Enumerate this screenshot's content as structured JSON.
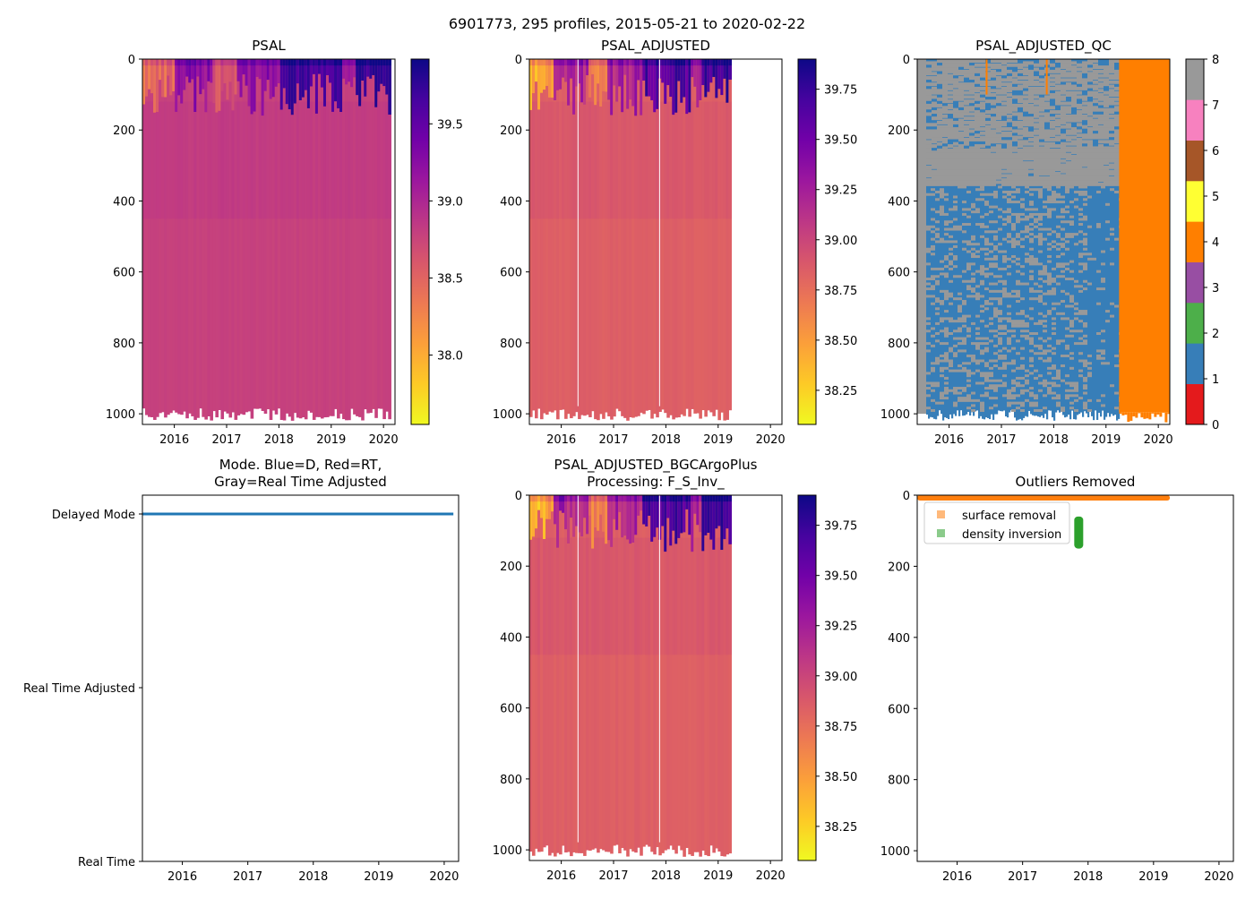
{
  "figure": {
    "suptitle": "6901773, 295 profiles, 2015-05-21 to 2020-02-22"
  },
  "chart_data": [
    {
      "id": "psal",
      "type": "heatmap",
      "title": "PSAL",
      "xticks": [
        "2016",
        "2017",
        "2018",
        "2019",
        "2020"
      ],
      "yticks": [
        "0",
        "200",
        "400",
        "600",
        "800",
        "1000"
      ],
      "ylim": [
        0,
        1030
      ],
      "data_x_end": 2020.14,
      "colormap": "plasma_r",
      "colorbar": {
        "min": 37.55,
        "max": 39.92,
        "ticks": [
          "38.0",
          "38.5",
          "39.0",
          "39.5"
        ],
        "tick_values": [
          38.0,
          38.5,
          39.0,
          39.5
        ]
      }
    },
    {
      "id": "psal-adjusted",
      "type": "heatmap",
      "title": "PSAL_ADJUSTED",
      "xticks": [
        "2016",
        "2017",
        "2018",
        "2019",
        "2020"
      ],
      "yticks": [
        "0",
        "200",
        "400",
        "600",
        "800",
        "1000"
      ],
      "ylim": [
        0,
        1030
      ],
      "data_x_end": 2019.25,
      "colormap": "plasma_r",
      "colorbar": {
        "min": 38.08,
        "max": 39.9,
        "ticks": [
          "38.25",
          "38.50",
          "38.75",
          "39.00",
          "39.25",
          "39.50",
          "39.75"
        ],
        "tick_values": [
          38.25,
          38.5,
          38.75,
          39.0,
          39.25,
          39.5,
          39.75
        ]
      }
    },
    {
      "id": "psal-adjusted-qc",
      "type": "heatmap",
      "title": "PSAL_ADJUSTED_QC",
      "xticks": [
        "2016",
        "2017",
        "2018",
        "2019",
        "2020"
      ],
      "yticks": [
        "0",
        "200",
        "400",
        "600",
        "800",
        "1000"
      ],
      "ylim": [
        0,
        1030
      ],
      "qc_flag_4_from": 2019.25,
      "colorbar": {
        "min": 0,
        "max": 8,
        "ticks": [
          "0",
          "1",
          "2",
          "3",
          "4",
          "5",
          "6",
          "7",
          "8"
        ],
        "tick_values": [
          0,
          1,
          2,
          3,
          4,
          5,
          6,
          7,
          8
        ],
        "colors": [
          "#e41a1c",
          "#377eb8",
          "#4daf4a",
          "#984ea3",
          "#ff7f00",
          "#ffff33",
          "#a65628",
          "#f781bf",
          "#999999"
        ]
      }
    },
    {
      "id": "mode",
      "type": "line",
      "title": "Mode. Blue=D, Red=RT,",
      "title_line2": "Gray=Real Time Adjusted",
      "xticks": [
        "2016",
        "2017",
        "2018",
        "2019",
        "2020"
      ],
      "yticks": [
        "Delayed Mode",
        "Real Time Adjusted",
        "Real Time"
      ],
      "series": [
        {
          "name": "Delayed Mode",
          "color": "#1f77b4",
          "x": [
            2015.39,
            2020.14
          ],
          "level": "Delayed Mode"
        }
      ]
    },
    {
      "id": "bgc-plus",
      "type": "heatmap",
      "title": "PSAL_ADJUSTED_BGCArgoPlus",
      "title_line2": "Processing: F_S_Inv_",
      "xticks": [
        "2016",
        "2017",
        "2018",
        "2019",
        "2020"
      ],
      "yticks": [
        "0",
        "200",
        "400",
        "600",
        "800",
        "1000"
      ],
      "ylim": [
        0,
        1030
      ],
      "data_x_end": 2019.25,
      "colormap": "plasma_r",
      "colorbar": {
        "min": 38.08,
        "max": 39.9,
        "ticks": [
          "38.25",
          "38.50",
          "38.75",
          "39.00",
          "39.25",
          "39.50",
          "39.75"
        ],
        "tick_values": [
          38.25,
          38.5,
          38.75,
          39.0,
          39.25,
          39.5,
          39.75
        ]
      }
    },
    {
      "id": "outliers",
      "type": "scatter",
      "title": "Outliers Removed",
      "xticks": [
        "2016",
        "2017",
        "2018",
        "2019",
        "2020"
      ],
      "yticks": [
        "0",
        "200",
        "400",
        "600",
        "800",
        "1000"
      ],
      "ylim": [
        0,
        1030
      ],
      "legend_position": "upper-left",
      "series": [
        {
          "name": "surface removal",
          "color": "#ff7f0e",
          "x": [
            2015.39,
            2019.25
          ],
          "depth": [
            0,
            10
          ]
        },
        {
          "name": "density inversion",
          "color": "#2ca02c",
          "x": [
            2017.83,
            2017.88
          ],
          "depth": [
            60,
            150
          ]
        }
      ]
    }
  ]
}
